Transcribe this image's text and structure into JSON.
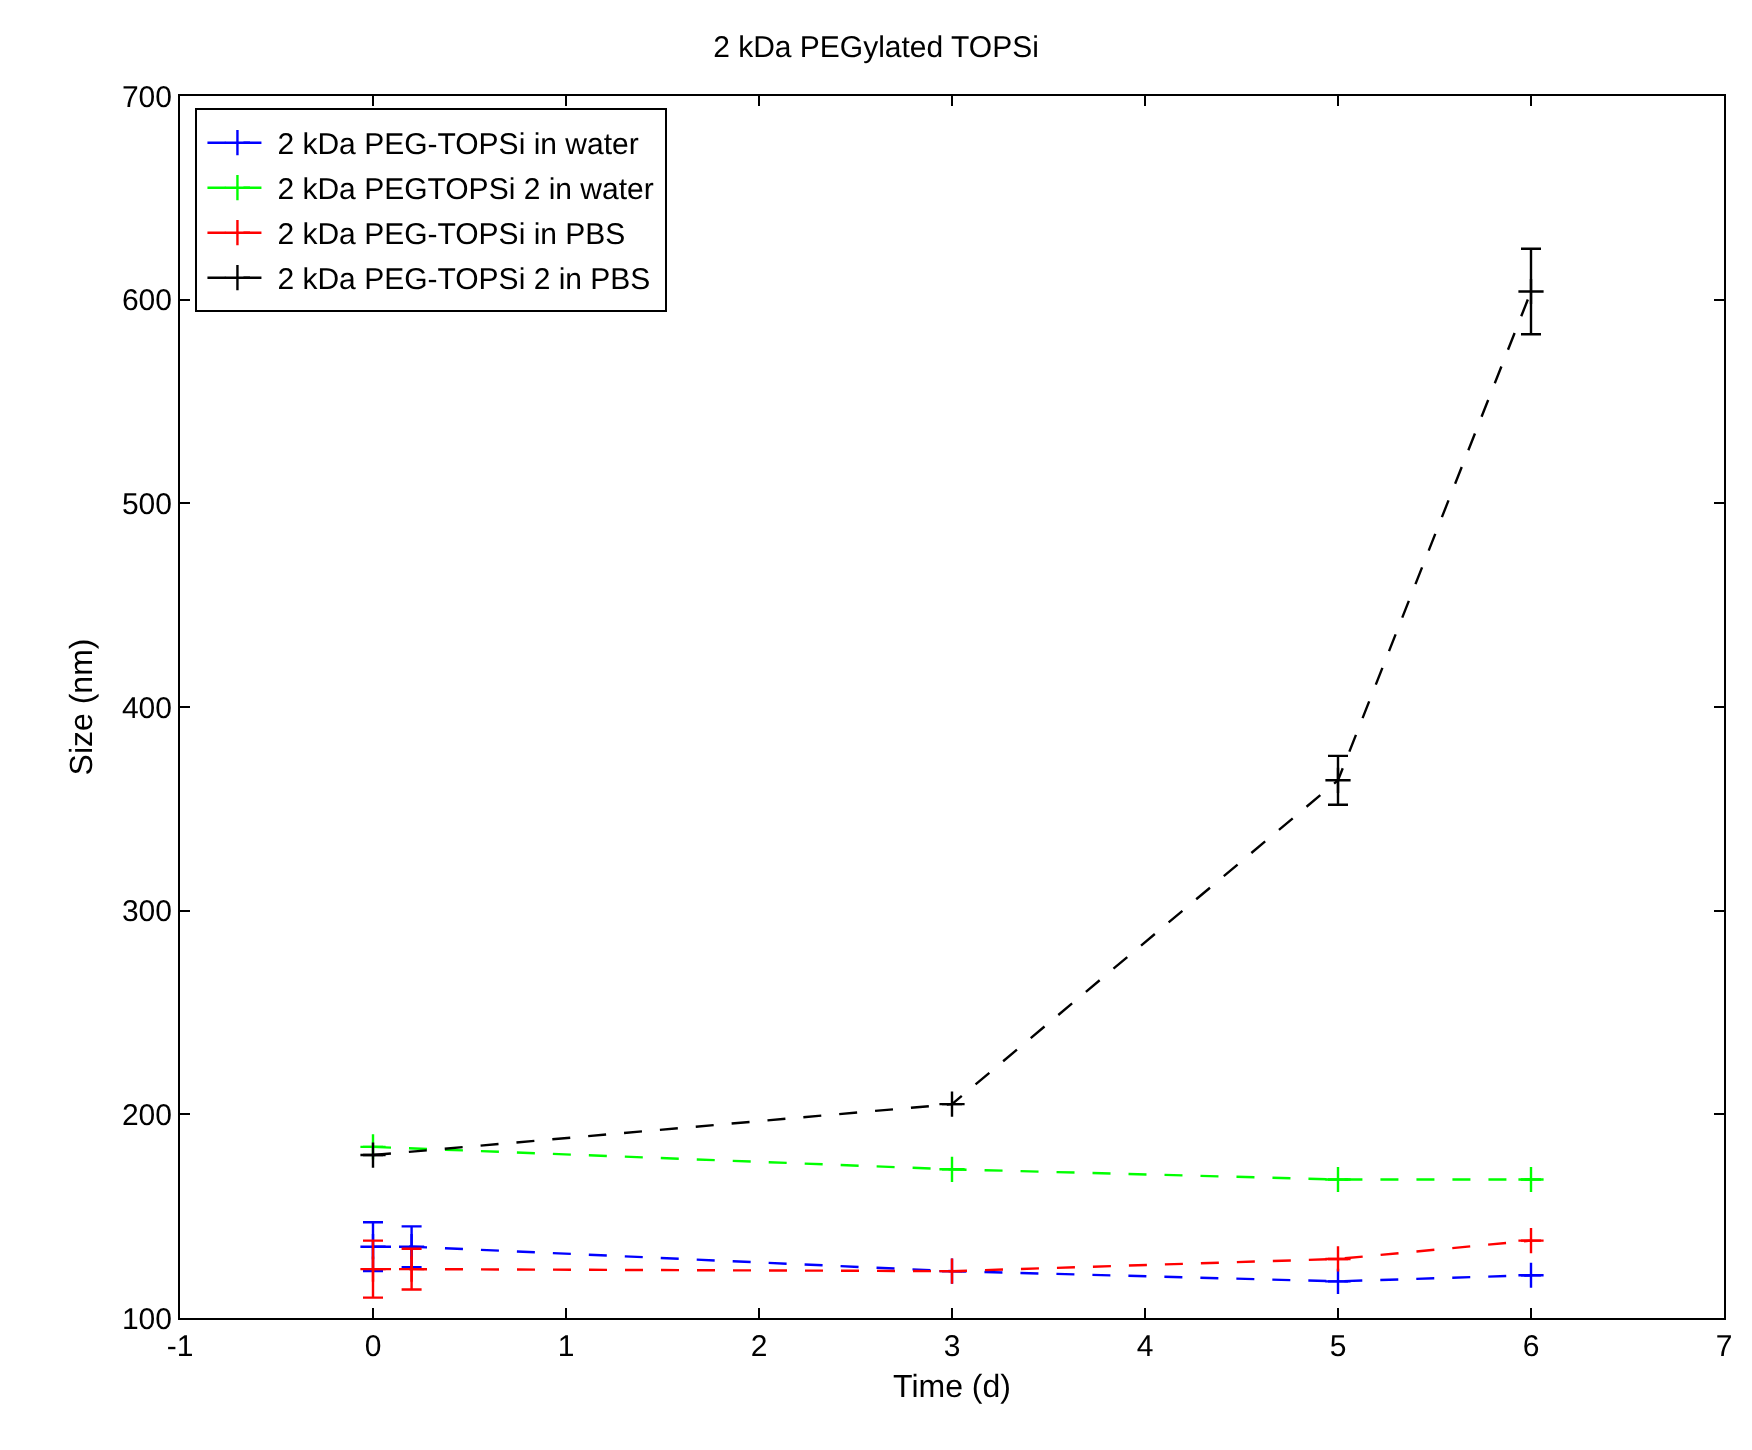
{
  "chart_data": {
    "type": "line",
    "title": "2 kDa PEGylated TOPSi",
    "xlabel": "Time (d)",
    "ylabel": "Size (nm)",
    "xlim": [
      -1,
      7
    ],
    "xticks": [
      -1,
      0,
      1,
      2,
      3,
      4,
      5,
      6,
      7
    ],
    "ylim": [
      100,
      700
    ],
    "yticks": [
      100,
      200,
      300,
      400,
      500,
      600,
      700
    ],
    "grid": false,
    "legend": "top left",
    "marker": "cross",
    "line_style": "dashed",
    "series": [
      {
        "name": "2 kDa PEG-TOPSi in water",
        "color": "#0000ff",
        "x": [
          0,
          0.2,
          3,
          5,
          6
        ],
        "values": [
          135,
          135,
          123,
          118,
          121
        ],
        "errors": [
          12,
          10,
          null,
          null,
          null
        ]
      },
      {
        "name": "2 kDa PEGTOPSi 2 in water",
        "color": "#00ff00",
        "x": [
          0,
          3,
          5,
          6
        ],
        "values": [
          184,
          173,
          168,
          168
        ],
        "errors": [
          null,
          null,
          null,
          null
        ]
      },
      {
        "name": "2 kDa PEG-TOPSi in PBS",
        "color": "#ff0000",
        "x": [
          0,
          0.2,
          3,
          5,
          6
        ],
        "values": [
          124,
          124,
          123,
          129,
          138
        ],
        "errors": [
          14,
          10,
          null,
          null,
          null
        ]
      },
      {
        "name": "2 kDa PEG-TOPSi 2 in PBS",
        "color": "#000000",
        "x": [
          0,
          3,
          5,
          6
        ],
        "values": [
          180,
          205,
          364,
          604
        ],
        "errors": [
          null,
          null,
          12,
          21
        ]
      }
    ]
  }
}
